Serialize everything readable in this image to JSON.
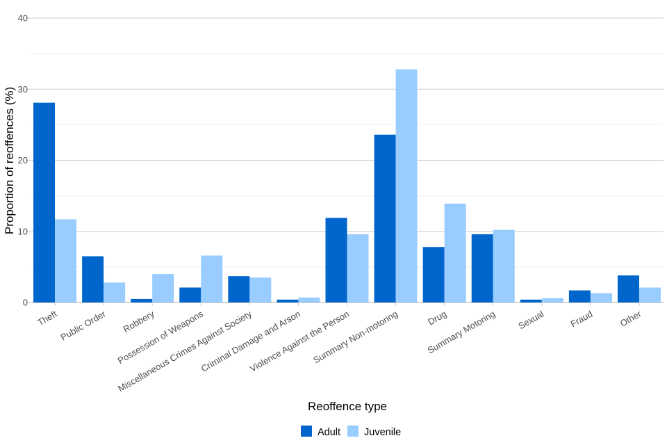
{
  "chart_data": {
    "type": "bar",
    "xlabel": "Reoffence type",
    "ylabel": "Proportion of reoffences (%)",
    "ylim": [
      0,
      40
    ],
    "yticks": [
      "0",
      "10",
      "20",
      "30",
      "40"
    ],
    "grid": true,
    "legend_position": "bottom",
    "categories": [
      "Theft",
      "Public Order",
      "Robbery",
      "Possession of Weapons",
      "Miscellaneous Crimes Against Society",
      "Criminal Damage and Arson",
      "Violence Against the Person",
      "Summary Non-motoring",
      "Drug",
      "Summary Motoring",
      "Sexual",
      "Fraud",
      "Other"
    ],
    "series": [
      {
        "name": "Adult",
        "color": "#0066cc",
        "values": [
          28.1,
          6.5,
          0.5,
          2.1,
          3.7,
          0.4,
          11.9,
          23.6,
          7.8,
          9.6,
          0.4,
          1.7,
          3.8
        ]
      },
      {
        "name": "Juvenile",
        "color": "#99ccff",
        "values": [
          11.7,
          2.8,
          4.0,
          6.6,
          3.5,
          0.7,
          9.6,
          32.8,
          13.9,
          10.2,
          0.6,
          1.3,
          2.1
        ]
      }
    ]
  }
}
